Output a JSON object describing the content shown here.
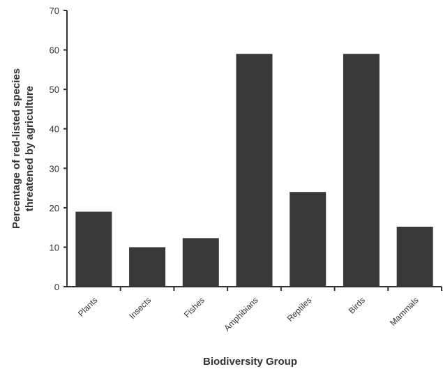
{
  "chart_data": {
    "type": "bar",
    "title": "",
    "xlabel": "Biodiversity Group",
    "ylabel_lines": [
      "Percentage of red-listed species",
      "threatened by agriculture"
    ],
    "categories": [
      "Plants",
      "Insects",
      "Fishes",
      "Amphibians",
      "Reptiles",
      "Birds",
      "Mammals"
    ],
    "values": [
      19,
      10,
      12.3,
      59,
      24,
      59,
      15.2
    ],
    "ylim": [
      0,
      70
    ],
    "yticks": [
      0,
      10,
      20,
      30,
      40,
      50,
      60,
      70
    ],
    "grid": false,
    "bar_color": "#383838",
    "axis_color": "#333333"
  }
}
